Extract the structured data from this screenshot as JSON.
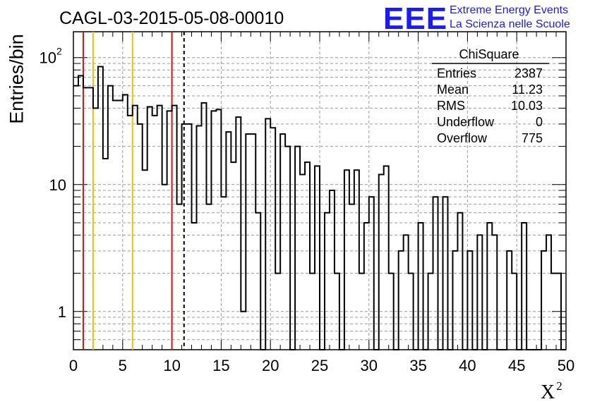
{
  "title": "CAGL-03-2015-05-08-00010",
  "logo": {
    "mark": "EEE",
    "line1": "Extreme Energy Events",
    "line2": "La Scienza nelle Scuole"
  },
  "ylabel": "Entries/bin",
  "xlabel_main": "X",
  "xlabel_sup": "2",
  "stats": {
    "name": "ChiSquare",
    "rows": [
      {
        "label": "Entries",
        "value": "2387"
      },
      {
        "label": "Mean",
        "value": "11.23"
      },
      {
        "label": "RMS",
        "value": "10.03"
      },
      {
        "label": "Underflow",
        "value": "0"
      },
      {
        "label": "Overflow",
        "value": "775"
      }
    ]
  },
  "colors": {
    "histogram": "#000000",
    "red_lines": "#dd1111",
    "orange_lines": "#f0c000",
    "grid": "#9a9a9a",
    "logo": "#1a1aff"
  },
  "chart_data": {
    "type": "histogram",
    "x_axis": {
      "range": [
        0,
        50
      ],
      "ticks": [
        "0",
        "5",
        "10",
        "15",
        "20",
        "25",
        "30",
        "35",
        "40",
        "45",
        "50"
      ]
    },
    "y_axis": {
      "scale": "log",
      "range": [
        0.5,
        160
      ],
      "tick_labels": [
        "1",
        "10",
        "10^2"
      ]
    },
    "grid": true,
    "bin_width": 0.5,
    "bin_values": [
      60,
      72,
      58,
      58,
      40,
      85,
      16,
      60,
      46,
      46,
      51,
      35,
      42,
      30,
      13,
      41,
      35,
      42,
      10,
      38,
      42,
      7,
      30,
      30,
      5,
      29,
      44,
      7,
      38,
      39,
      8,
      26,
      15,
      34,
      1,
      25,
      25,
      6,
      0.4,
      33,
      28,
      2,
      25,
      20,
      0.4,
      20,
      12,
      15,
      2,
      14,
      0.4,
      6,
      9,
      2,
      0.4,
      13,
      7,
      13,
      2,
      5,
      8,
      0.4,
      12,
      14,
      2,
      0.4,
      3,
      4,
      2,
      0.4,
      5,
      0.4,
      2,
      8,
      0.4,
      8,
      0.4,
      3,
      6,
      0.4,
      3,
      0.4,
      4,
      0.4,
      5,
      4,
      0.4,
      0.4,
      3,
      2,
      0.4,
      5,
      0.4,
      0.4,
      0.4,
      3,
      4,
      2,
      2,
      0.4
    ],
    "vertical_lines": [
      {
        "x": 1,
        "color": "red",
        "style": "solid"
      },
      {
        "x": 2,
        "color": "orange",
        "style": "solid"
      },
      {
        "x": 6,
        "color": "orange",
        "style": "solid"
      },
      {
        "x": 10,
        "color": "red",
        "style": "solid"
      },
      {
        "x": 11.23,
        "color": "black",
        "style": "dashed"
      }
    ]
  }
}
